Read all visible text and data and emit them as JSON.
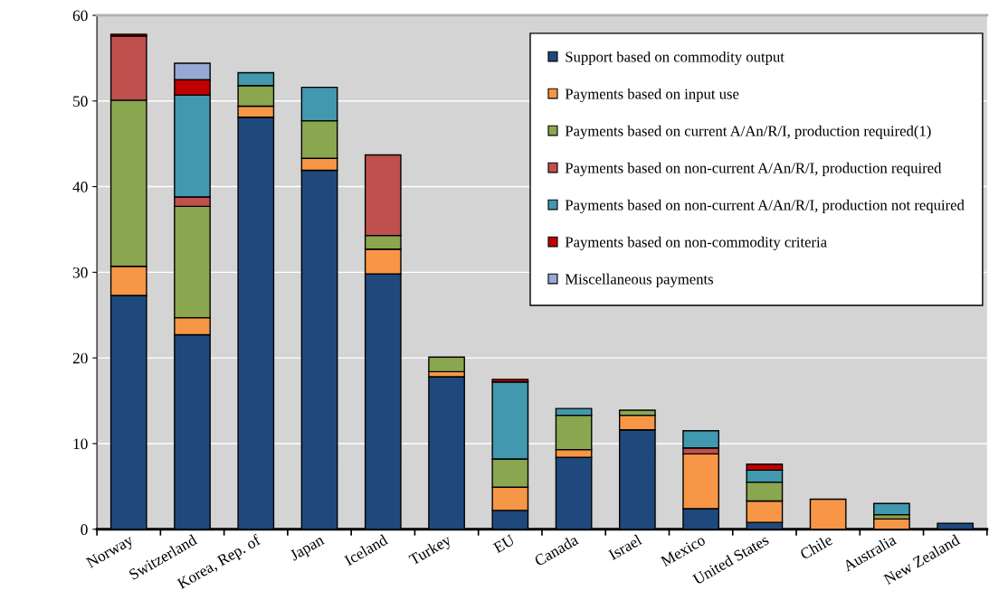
{
  "chart_data": {
    "type": "bar",
    "stacked": true,
    "categories": [
      "Norway",
      "Switzerland",
      "Korea, Rep. of",
      "Japan",
      "Iceland",
      "Turkey",
      "EU",
      "Canada",
      "Israel",
      "Mexico",
      "United States",
      "Chile",
      "Australia",
      "New Zealand"
    ],
    "series": [
      {
        "name": "Support based on commodity output",
        "color": "#1f497d",
        "values": [
          27.3,
          22.7,
          48.1,
          41.9,
          29.8,
          17.8,
          2.2,
          8.4,
          11.6,
          2.4,
          0.8,
          null,
          null,
          0.7
        ]
      },
      {
        "name": "Payments based on input use",
        "color": "#f79646",
        "values": [
          3.4,
          2.0,
          1.3,
          1.4,
          2.9,
          0.6,
          2.7,
          0.9,
          1.7,
          6.4,
          2.5,
          3.5,
          1.2,
          null
        ]
      },
      {
        "name": "Payments based on current A/An/R/I, production required(1)",
        "color": "#8aa64f",
        "values": [
          19.4,
          13.0,
          2.4,
          4.4,
          1.6,
          1.7,
          3.3,
          4.0,
          0.6,
          null,
          2.2,
          null,
          0.5,
          null
        ]
      },
      {
        "name": "Payments based on non-current A/An/R/I, production required",
        "color": "#c0504d",
        "values": [
          7.5,
          1.1,
          null,
          null,
          9.4,
          null,
          null,
          null,
          null,
          0.7,
          null,
          null,
          null,
          null
        ]
      },
      {
        "name": "Payments based on non-current A/An/R/I, production not required",
        "color": "#4198af",
        "values": [
          null,
          11.9,
          1.5,
          3.9,
          null,
          null,
          9.0,
          0.8,
          null,
          2.0,
          1.4,
          null,
          1.3,
          null
        ]
      },
      {
        "name": "Payments based on non-commodity criteria",
        "color": "#c00000",
        "values": [
          0.2,
          1.8,
          null,
          null,
          null,
          null,
          0.3,
          null,
          null,
          null,
          0.7,
          null,
          null,
          null
        ]
      },
      {
        "name": "Miscellaneous payments",
        "color": "#95a9d3",
        "values": [
          null,
          1.9,
          null,
          null,
          null,
          null,
          null,
          null,
          null,
          null,
          null,
          null,
          null,
          null
        ]
      }
    ],
    "ylim": [
      0,
      60
    ],
    "yticks": [
      0,
      10,
      20,
      30,
      40,
      50,
      60
    ],
    "grid": "y",
    "legend": "top right"
  }
}
